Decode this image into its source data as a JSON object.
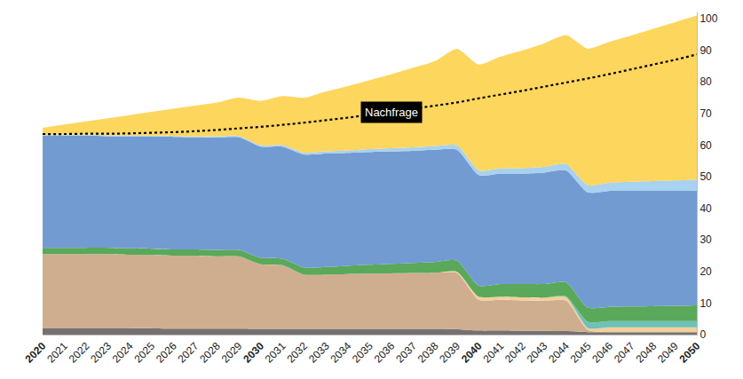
{
  "chart_data": {
    "type": "area",
    "stacked": true,
    "grid": false,
    "x": [
      2020,
      2021,
      2022,
      2023,
      2024,
      2025,
      2026,
      2027,
      2028,
      2029,
      2030,
      2031,
      2032,
      2033,
      2034,
      2035,
      2036,
      2037,
      2038,
      2039,
      2040,
      2041,
      2042,
      2043,
      2044,
      2045,
      2046,
      2047,
      2048,
      2049,
      2050
    ],
    "xlim": [
      2020,
      2050
    ],
    "xticks": [
      2020,
      2021,
      2022,
      2023,
      2024,
      2025,
      2026,
      2027,
      2028,
      2029,
      2030,
      2031,
      2032,
      2033,
      2034,
      2035,
      2036,
      2037,
      2038,
      2039,
      2040,
      2041,
      2042,
      2043,
      2044,
      2045,
      2046,
      2047,
      2048,
      2049,
      2050
    ],
    "ylim": [
      0,
      102
    ],
    "yticks": [
      0,
      10,
      20,
      30,
      40,
      50,
      60,
      70,
      80,
      90,
      100
    ],
    "series": [
      {
        "color": "#767171",
        "values": [
          2,
          2,
          2,
          2,
          2,
          2,
          1.9,
          1.9,
          1.9,
          1.9,
          1.8,
          1.8,
          1.8,
          1.8,
          1.8,
          1.8,
          1.8,
          1.8,
          1.8,
          1.7,
          1.3,
          1.3,
          1.2,
          1.2,
          1.1,
          0.8,
          0.8,
          0.8,
          0.8,
          0.8,
          0.8
        ]
      },
      {
        "color": "#cfae8f",
        "values": [
          23.5,
          23.5,
          23.5,
          23.5,
          23.3,
          23.2,
          23.1,
          23.1,
          22.9,
          22.9,
          20.5,
          20.2,
          17.2,
          17.2,
          17.4,
          17.5,
          17.6,
          17.7,
          17.8,
          17.8,
          9.7,
          9.7,
          9.6,
          9.5,
          9.7,
          0.7,
          0,
          0,
          0,
          0,
          0
        ]
      },
      {
        "color": "#f3cf9b",
        "values": [
          0,
          0,
          0,
          0,
          0,
          0,
          0,
          0,
          0,
          0,
          0,
          0,
          0,
          0,
          0,
          0,
          0,
          0,
          0,
          0.4,
          1,
          1,
          1,
          1,
          1,
          0.6,
          1.5,
          1.5,
          1.5,
          1.5,
          1.5
        ]
      },
      {
        "color": "#6cc1b8",
        "values": [
          0,
          0,
          0,
          0,
          0,
          0,
          0,
          0,
          0,
          0,
          0,
          0,
          0,
          0,
          0,
          0,
          0,
          0,
          0,
          0,
          0,
          0,
          0,
          0,
          0.3,
          2,
          2,
          2,
          2,
          2,
          2
        ]
      },
      {
        "color": "#5aa85a",
        "values": [
          2,
          2,
          2,
          2,
          2,
          2,
          2,
          2,
          2,
          2,
          2,
          2,
          2.2,
          2.4,
          2.6,
          2.8,
          3,
          3.2,
          3.4,
          3.5,
          3.5,
          4,
          4.2,
          4.3,
          4.5,
          4.5,
          4.5,
          4.6,
          4.7,
          4.8,
          5
        ]
      },
      {
        "color": "#729bd1",
        "values": [
          35.5,
          35.5,
          35.5,
          35.3,
          35.5,
          35.5,
          35.6,
          35.5,
          35.6,
          35.7,
          35.2,
          35.5,
          35.8,
          35.9,
          35.7,
          35.7,
          35.6,
          35.5,
          35.5,
          35.1,
          35,
          35,
          35,
          35.3,
          35.4,
          36.4,
          36.7,
          36.6,
          36.5,
          36.4,
          36.3
        ]
      },
      {
        "color": "#a9d1f0",
        "values": [
          0.3,
          0.3,
          0.3,
          0.3,
          0.3,
          0.3,
          0.3,
          0.3,
          0.4,
          0.4,
          0.5,
          0.5,
          0.6,
          0.7,
          0.8,
          0.9,
          1,
          1.1,
          1.2,
          1.4,
          1.5,
          1.6,
          1.7,
          1.8,
          2,
          2.3,
          2.6,
          2.9,
          3.1,
          3.3,
          3.5
        ]
      },
      {
        "color": "#fdd65e",
        "values": [
          2.2,
          3.2,
          4.2,
          5.4,
          6.4,
          7.5,
          8.6,
          9.7,
          10.7,
          12.1,
          14,
          15.5,
          17.4,
          19,
          20.4,
          21.9,
          23.5,
          25.2,
          26.9,
          30.6,
          33.5,
          35.4,
          37.3,
          39.1,
          40.8,
          43.2,
          44.6,
          46.3,
          48.2,
          50.1,
          51.9
        ]
      },
      {
        "name": "Nachfrage",
        "type": "line",
        "line_style": "dotted",
        "color": "#000000",
        "values": [
          63.5,
          63.5,
          63.6,
          63.6,
          63.7,
          63.9,
          64.1,
          64.4,
          64.8,
          65.3,
          65.8,
          66.4,
          67.1,
          67.9,
          68.7,
          69.6,
          70.5,
          71.5,
          72.5,
          73.5,
          74.8,
          76,
          77.2,
          78.5,
          79.8,
          81.1,
          82.5,
          84,
          85.5,
          87,
          88.7
        ]
      }
    ]
  }
}
